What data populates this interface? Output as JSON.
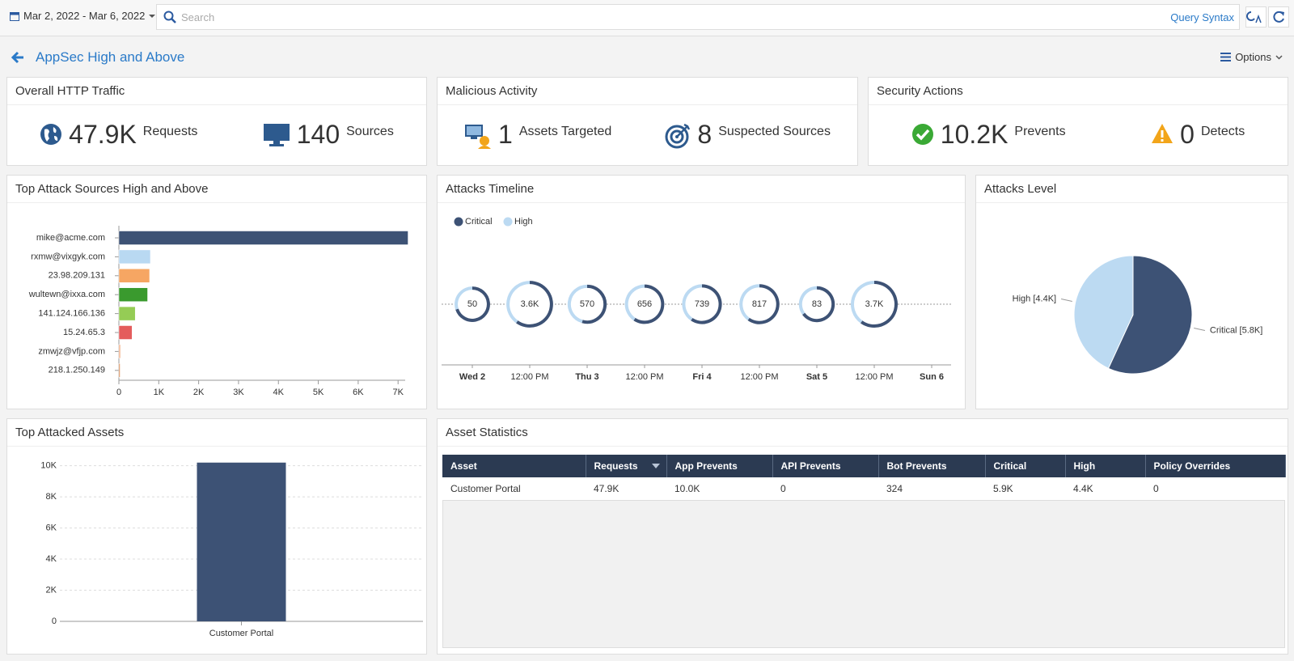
{
  "toolbar": {
    "date_range": "Mar 2, 2022 - Mar 6, 2022",
    "search_placeholder": "Search",
    "query_syntax": "Query Syntax"
  },
  "header": {
    "title": "AppSec High and Above",
    "options": "Options"
  },
  "kpis": [
    {
      "title": "Overall HTTP Traffic",
      "items": [
        {
          "value": "47.9K",
          "label": "Requests"
        },
        {
          "value": "140",
          "label": "Sources"
        }
      ]
    },
    {
      "title": "Malicious Activity",
      "items": [
        {
          "value": "1",
          "label": "Assets Targeted"
        },
        {
          "value": "8",
          "label": "Suspected Sources"
        }
      ]
    },
    {
      "title": "Security Actions",
      "items": [
        {
          "value": "10.2K",
          "label": "Prevents"
        },
        {
          "value": "0",
          "label": "Detects"
        }
      ]
    }
  ],
  "chart_data": [
    {
      "type": "hbar",
      "title": "Top Attack Sources High and Above",
      "categories": [
        "mike@acme.com",
        "rxmw@vixgyk.com",
        "23.98.209.131",
        "wultewn@ixxa.com",
        "141.124.166.136",
        "15.24.65.3",
        "zmwjz@vfjp.com",
        "218.1.250.149"
      ],
      "values": [
        7250,
        790,
        770,
        720,
        410,
        330,
        40,
        30
      ],
      "colors": [
        "#3d5275",
        "#b9d9f2",
        "#f6a663",
        "#3a9a2e",
        "#95cc55",
        "#e45c5c",
        "#f2b38e",
        "#d98a55"
      ],
      "xlim": [
        0,
        7300
      ],
      "xticks": [
        0,
        {
          "value": 1000,
          "label": "1K"
        },
        {
          "value": 2000,
          "label": "2K"
        },
        {
          "value": 3000,
          "label": "3K"
        },
        {
          "value": 4000,
          "label": "4K"
        },
        {
          "value": 5000,
          "label": "5K"
        },
        {
          "value": 6000,
          "label": "6K"
        },
        {
          "value": 7000,
          "label": "7K"
        }
      ]
    },
    {
      "type": "donut_timeline",
      "title": "Attacks Timeline",
      "categories": [
        "Wed 2",
        "12:00 PM",
        "Thu 3",
        "12:00 PM",
        "Fri 4",
        "12:00 PM",
        "Sat 5",
        "12:00 PM",
        "Sun 6"
      ],
      "values": [
        50,
        3600,
        570,
        656,
        739,
        817,
        83,
        3700,
        null
      ],
      "value_labels": [
        "50",
        "3.6K",
        "570",
        "656",
        "739",
        "817",
        "83",
        "3.7K",
        null
      ],
      "series": [
        {
          "name": "Critical",
          "color": "#3d5275",
          "values": [
            35,
            2160,
            310,
            390,
            440,
            490,
            54,
            2220,
            null
          ]
        },
        {
          "name": "High",
          "color": "#bcdaf2",
          "values": [
            15,
            1440,
            260,
            266,
            299,
            327,
            29,
            1480,
            null
          ]
        }
      ],
      "legend": "top-left"
    },
    {
      "type": "pie",
      "title": "Attacks Level",
      "categories": [
        "Critical",
        "High"
      ],
      "values": [
        5800,
        4400
      ],
      "value_labels": [
        "Critical [5.8K]",
        "High [4.4K]"
      ],
      "colors": [
        "#3d5275",
        "#bcdaf2"
      ]
    },
    {
      "type": "bar",
      "title": "Top Attacked Assets",
      "categories": [
        "Customer Portal"
      ],
      "values": [
        10200
      ],
      "color": "#3d5275",
      "ylim": [
        0,
        10500
      ],
      "yticks": [
        0,
        {
          "value": 2000,
          "label": "2K"
        },
        {
          "value": 4000,
          "label": "4K"
        },
        {
          "value": 6000,
          "label": "6K"
        },
        {
          "value": 8000,
          "label": "8K"
        },
        {
          "value": 10000,
          "label": "10K"
        }
      ],
      "grid": true
    }
  ],
  "table": {
    "title": "Asset Statistics",
    "columns": [
      "Asset",
      "Requests",
      "App Prevents",
      "API Prevents",
      "Bot Prevents",
      "Critical",
      "High",
      "Policy Overrides"
    ],
    "rows": [
      [
        "Customer Portal",
        "47.9K",
        "10.0K",
        "0",
        "324",
        "5.9K",
        "4.4K",
        "0"
      ]
    ]
  }
}
